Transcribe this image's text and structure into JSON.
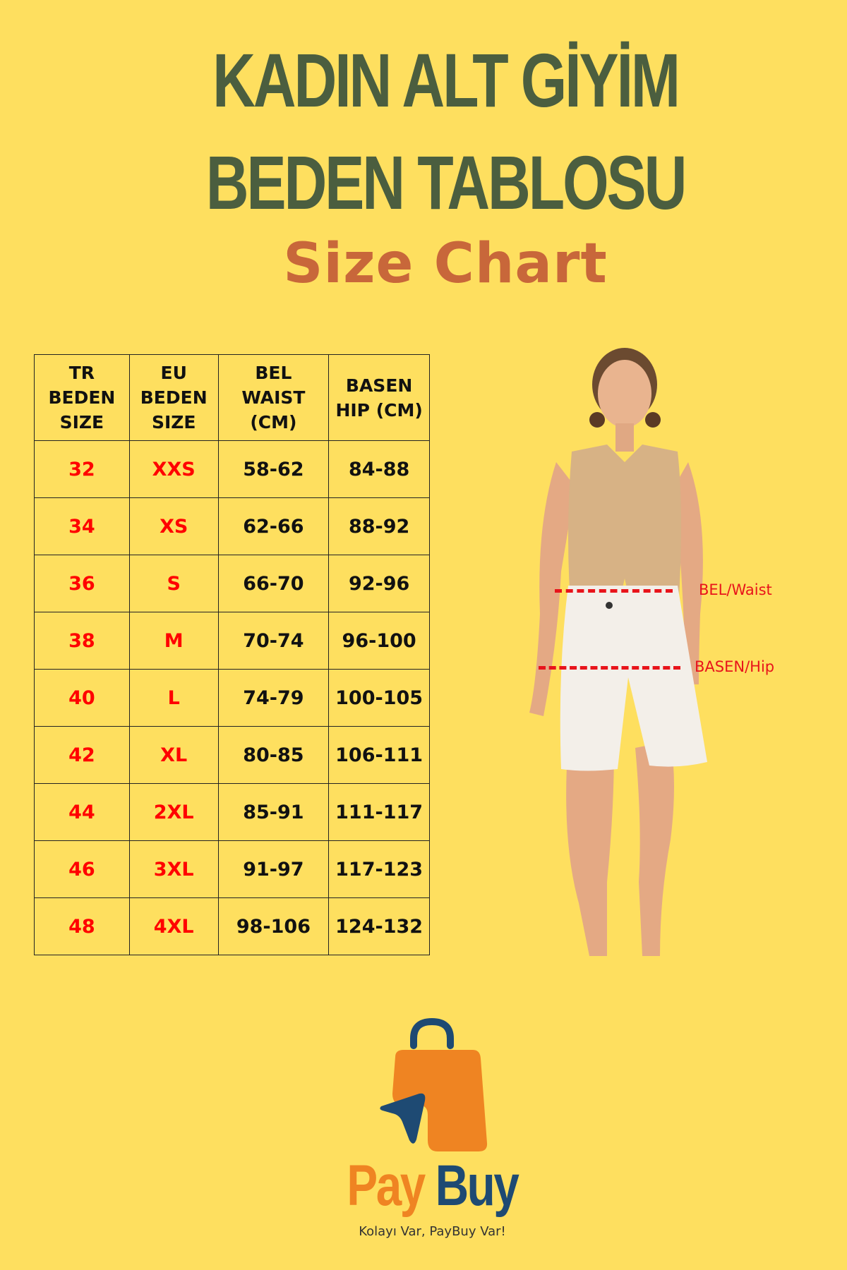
{
  "header": {
    "title_line1": "KADIN ALT GİYİM",
    "title_line2": "BEDEN TABLOSU",
    "subtitle": "Size Chart"
  },
  "table": {
    "headers": [
      "TR BEDEN SIZE",
      "EU BEDEN SIZE",
      "BEL WAIST (CM)",
      "BASEN HIP (CM)"
    ],
    "header_lines": [
      [
        "TR",
        "BEDEN",
        "SIZE"
      ],
      [
        "EU",
        "BEDEN",
        "SIZE"
      ],
      [
        "BEL",
        "WAIST",
        "(CM)"
      ],
      [
        "BASEN",
        "HIP (CM)"
      ]
    ],
    "rows": [
      [
        "32",
        "XXS",
        "58-62",
        "84-88"
      ],
      [
        "34",
        "XS",
        "62-66",
        "88-92"
      ],
      [
        "36",
        "S",
        "66-70",
        "92-96"
      ],
      [
        "38",
        "M",
        "70-74",
        "96-100"
      ],
      [
        "40",
        "L",
        "74-79",
        "100-105"
      ],
      [
        "42",
        "XL",
        "80-85",
        "106-111"
      ],
      [
        "44",
        "2XL",
        "85-91",
        "111-117"
      ],
      [
        "46",
        "3XL",
        "91-97",
        "117-123"
      ],
      [
        "48",
        "4XL",
        "98-106",
        "124-132"
      ]
    ]
  },
  "model": {
    "waist_label": "BEL/Waist",
    "hip_label": "BASEN/Hip"
  },
  "logo": {
    "pay": "Pay",
    "buy": "Buy",
    "tagline": "Kolayı Var, PayBuy Var!"
  },
  "colors": {
    "background": "#fedf5f",
    "title": "#4b5e3f",
    "subtitle": "#c8673a",
    "size_text": "#ff0000",
    "measure_line": "#e8141b",
    "logo_orange": "#ef8422",
    "logo_blue": "#1e4a73"
  }
}
